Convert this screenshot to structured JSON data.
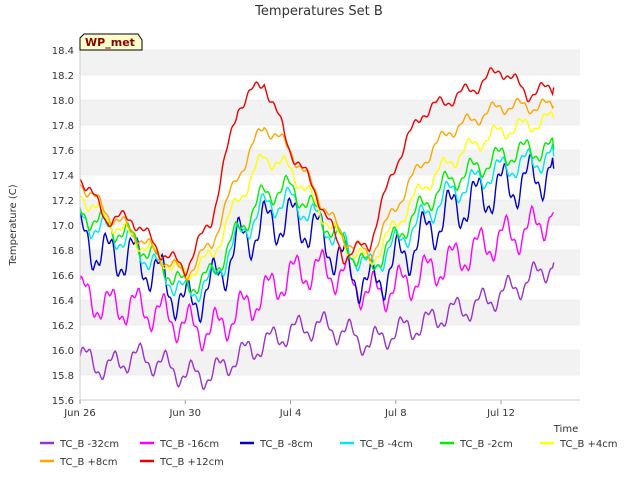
{
  "chart_data": {
    "type": "line",
    "title": "Temperatures Set B",
    "xlabel": "Time",
    "ylabel": "Temperature (C)",
    "ylim": [
      15.6,
      18.4
    ],
    "yticks": [
      15.6,
      15.8,
      16.0,
      16.2,
      16.4,
      16.6,
      16.8,
      17.0,
      17.2,
      17.4,
      17.6,
      17.8,
      18.0,
      18.2,
      18.4
    ],
    "xlim": [
      "2023-06-26",
      "2023-07-15"
    ],
    "xticks": [
      {
        "date": "2023-06-26",
        "label": "Jun 26"
      },
      {
        "date": "2023-06-30",
        "label": "Jun 30"
      },
      {
        "date": "2023-07-04",
        "label": "Jul 4"
      },
      {
        "date": "2023-07-08",
        "label": "Jul 8"
      },
      {
        "date": "2023-07-12",
        "label": "Jul 12"
      }
    ],
    "grid": "horizontal bands",
    "legend_position": "bottom",
    "annotation": "WP_met",
    "series": [
      {
        "name": "TC_B -32cm",
        "color": "#9932CC",
        "x": [
          "2023-06-26",
          "2023-06-27",
          "2023-06-28",
          "2023-06-29",
          "2023-06-30",
          "2023-07-01",
          "2023-07-02",
          "2023-07-03",
          "2023-07-04",
          "2023-07-05",
          "2023-07-06",
          "2023-07-07",
          "2023-07-08",
          "2023-07-09",
          "2023-07-10",
          "2023-07-11",
          "2023-07-12",
          "2023-07-13",
          "2023-07-14"
        ],
        "values": [
          15.95,
          15.85,
          15.95,
          15.9,
          15.8,
          15.8,
          15.95,
          16.05,
          16.15,
          16.2,
          16.15,
          16.05,
          16.15,
          16.2,
          16.3,
          16.35,
          16.45,
          16.55,
          16.7
        ]
      },
      {
        "name": "TC_B -16cm",
        "color": "#FF00FF",
        "x": [
          "2023-06-26",
          "2023-06-27",
          "2023-06-28",
          "2023-06-29",
          "2023-06-30",
          "2023-07-01",
          "2023-07-02",
          "2023-07-03",
          "2023-07-04",
          "2023-07-05",
          "2023-07-06",
          "2023-07-07",
          "2023-07-08",
          "2023-07-09",
          "2023-07-10",
          "2023-07-11",
          "2023-07-12",
          "2023-07-13",
          "2023-07-14"
        ],
        "values": [
          16.45,
          16.35,
          16.35,
          16.3,
          16.2,
          16.15,
          16.3,
          16.45,
          16.6,
          16.65,
          16.6,
          16.45,
          16.5,
          16.6,
          16.7,
          16.8,
          16.9,
          16.95,
          17.1
        ]
      },
      {
        "name": "TC_B -8cm",
        "color": "#0000CD",
        "x": [
          "2023-06-26",
          "2023-06-27",
          "2023-06-28",
          "2023-06-29",
          "2023-06-30",
          "2023-07-01",
          "2023-07-02",
          "2023-07-03",
          "2023-07-04",
          "2023-07-05",
          "2023-07-06",
          "2023-07-07",
          "2023-07-08",
          "2023-07-09",
          "2023-07-10",
          "2023-07-11",
          "2023-07-12",
          "2023-07-13",
          "2023-07-14"
        ],
        "values": [
          16.9,
          16.75,
          16.75,
          16.6,
          16.35,
          16.5,
          16.85,
          17.0,
          17.05,
          16.95,
          16.7,
          16.5,
          16.7,
          16.9,
          17.1,
          17.2,
          17.3,
          17.35,
          17.45
        ]
      },
      {
        "name": "TC_B -4cm",
        "color": "#00E5EE",
        "x": [
          "2023-06-26",
          "2023-06-27",
          "2023-06-28",
          "2023-06-29",
          "2023-06-30",
          "2023-07-01",
          "2023-07-02",
          "2023-07-03",
          "2023-07-04",
          "2023-07-05",
          "2023-07-06",
          "2023-07-07",
          "2023-07-08",
          "2023-07-09",
          "2023-07-10",
          "2023-07-11",
          "2023-07-12",
          "2023-07-13",
          "2023-07-14"
        ],
        "values": [
          17.05,
          16.95,
          16.85,
          16.65,
          16.45,
          16.55,
          16.9,
          17.15,
          17.2,
          17.05,
          16.85,
          16.65,
          16.85,
          17.05,
          17.25,
          17.35,
          17.45,
          17.5,
          17.55
        ]
      },
      {
        "name": "TC_B -2cm",
        "color": "#00EE00",
        "x": [
          "2023-06-26",
          "2023-06-27",
          "2023-06-28",
          "2023-06-29",
          "2023-06-30",
          "2023-07-01",
          "2023-07-02",
          "2023-07-03",
          "2023-07-04",
          "2023-07-05",
          "2023-07-06",
          "2023-07-07",
          "2023-07-08",
          "2023-07-09",
          "2023-07-10",
          "2023-07-11",
          "2023-07-12",
          "2023-07-13",
          "2023-07-14"
        ],
        "values": [
          17.1,
          17.0,
          16.9,
          16.7,
          16.5,
          16.6,
          16.95,
          17.25,
          17.3,
          17.1,
          16.85,
          16.65,
          16.9,
          17.15,
          17.35,
          17.45,
          17.55,
          17.6,
          17.6
        ]
      },
      {
        "name": "TC_B +4cm",
        "color": "#FFFF00",
        "x": [
          "2023-06-26",
          "2023-06-27",
          "2023-06-28",
          "2023-06-29",
          "2023-06-30",
          "2023-07-01",
          "2023-07-02",
          "2023-07-03",
          "2023-07-04",
          "2023-07-05",
          "2023-07-06",
          "2023-07-07",
          "2023-07-08",
          "2023-07-09",
          "2023-07-10",
          "2023-07-11",
          "2023-07-12",
          "2023-07-13",
          "2023-07-14"
        ],
        "values": [
          17.25,
          17.05,
          16.9,
          16.75,
          16.6,
          16.75,
          17.2,
          17.55,
          17.45,
          17.15,
          16.85,
          16.7,
          17.0,
          17.3,
          17.5,
          17.65,
          17.75,
          17.8,
          17.85
        ]
      },
      {
        "name": "TC_B +8cm",
        "color": "#FFA500",
        "x": [
          "2023-06-26",
          "2023-06-27",
          "2023-06-28",
          "2023-06-29",
          "2023-06-30",
          "2023-07-01",
          "2023-07-02",
          "2023-07-03",
          "2023-07-04",
          "2023-07-05",
          "2023-07-06",
          "2023-07-07",
          "2023-07-08",
          "2023-07-09",
          "2023-07-10",
          "2023-07-11",
          "2023-07-12",
          "2023-07-13",
          "2023-07-14"
        ],
        "values": [
          17.35,
          17.1,
          16.95,
          16.75,
          16.6,
          16.85,
          17.4,
          17.8,
          17.6,
          17.25,
          16.9,
          16.75,
          17.15,
          17.5,
          17.75,
          17.85,
          17.95,
          17.95,
          17.95
        ]
      },
      {
        "name": "TC_B +12cm",
        "color": "#EE0000",
        "x": [
          "2023-06-26",
          "2023-06-27",
          "2023-06-28",
          "2023-06-29",
          "2023-06-30",
          "2023-07-01",
          "2023-07-02",
          "2023-07-03",
          "2023-07-04",
          "2023-07-05",
          "2023-07-06",
          "2023-07-07",
          "2023-07-08",
          "2023-07-09",
          "2023-07-10",
          "2023-07-11",
          "2023-07-12",
          "2023-07-13",
          "2023-07-14"
        ],
        "values": [
          17.4,
          17.05,
          17.05,
          16.8,
          16.65,
          17.05,
          17.95,
          18.15,
          17.6,
          17.25,
          16.75,
          16.85,
          17.5,
          17.9,
          18.0,
          18.1,
          18.25,
          18.05,
          18.1
        ]
      }
    ]
  }
}
